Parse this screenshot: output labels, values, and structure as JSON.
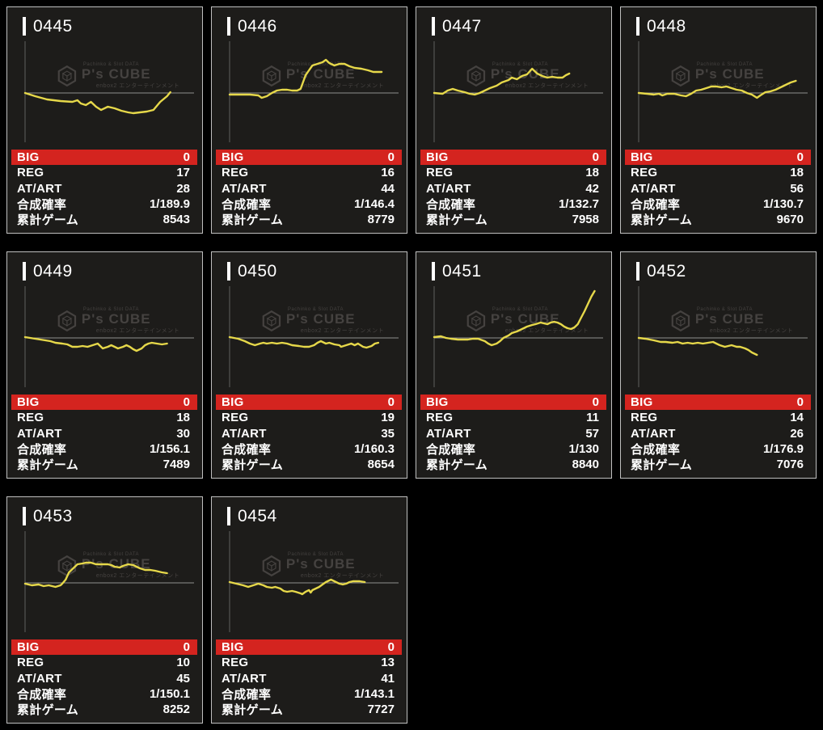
{
  "watermark": {
    "top": "Pachinko & Slot DATA",
    "brand": "P's CUBE",
    "bottom": "enbox2 エンターテインメント"
  },
  "labels": {
    "big": "BIG",
    "reg": "REG",
    "atart": "AT/ART",
    "rate": "合成確率",
    "games": "累計ゲーム"
  },
  "colors": {
    "page_bg": "#000000",
    "card_bg": "#1d1c1a",
    "card_border": "#bfbfbf",
    "big_row_bg": "#d4241f",
    "text": "#ffffff",
    "line": "#e6d84a",
    "axis_v": "#5f5f5f",
    "axis_h": "#8f8f8f",
    "watermark": "#454240",
    "title_bar": "#ffffff"
  },
  "chart_data": {
    "type": "line",
    "note": "slump graphs per machine; points are [x_fraction_of_plot_width, offset_px_above_zero_line]",
    "zero_line": 0
  },
  "machines": [
    {
      "id": "0445",
      "big": "0",
      "reg": "17",
      "atart": "28",
      "rate": "1/189.9",
      "games": "8543",
      "chart": [
        [
          0,
          0
        ],
        [
          0.06,
          -4
        ],
        [
          0.13,
          -8
        ],
        [
          0.21,
          -10
        ],
        [
          0.28,
          -11
        ],
        [
          0.31,
          -9
        ],
        [
          0.33,
          -13
        ],
        [
          0.36,
          -15
        ],
        [
          0.39,
          -11
        ],
        [
          0.42,
          -17
        ],
        [
          0.45,
          -21
        ],
        [
          0.49,
          -17
        ],
        [
          0.53,
          -19
        ],
        [
          0.57,
          -22
        ],
        [
          0.61,
          -24
        ],
        [
          0.64,
          -25
        ],
        [
          0.68,
          -24
        ],
        [
          0.72,
          -23
        ],
        [
          0.76,
          -21
        ],
        [
          0.8,
          -11
        ],
        [
          0.84,
          -4
        ],
        [
          0.86,
          1
        ]
      ]
    },
    {
      "id": "0446",
      "big": "0",
      "reg": "16",
      "atart": "44",
      "rate": "1/146.4",
      "games": "8779",
      "chart": [
        [
          0,
          -2
        ],
        [
          0.06,
          -2
        ],
        [
          0.12,
          -2
        ],
        [
          0.17,
          -3
        ],
        [
          0.19,
          -6
        ],
        [
          0.22,
          -4
        ],
        [
          0.25,
          0
        ],
        [
          0.28,
          3
        ],
        [
          0.31,
          4
        ],
        [
          0.34,
          4
        ],
        [
          0.37,
          3
        ],
        [
          0.4,
          3
        ],
        [
          0.42,
          5
        ],
        [
          0.45,
          22
        ],
        [
          0.49,
          34
        ],
        [
          0.52,
          36
        ],
        [
          0.55,
          38
        ],
        [
          0.57,
          41
        ],
        [
          0.59,
          37
        ],
        [
          0.62,
          34
        ],
        [
          0.65,
          36
        ],
        [
          0.68,
          36
        ],
        [
          0.71,
          33
        ],
        [
          0.74,
          31
        ],
        [
          0.78,
          30
        ],
        [
          0.82,
          28
        ],
        [
          0.85,
          26
        ],
        [
          0.9,
          26
        ]
      ]
    },
    {
      "id": "0447",
      "big": "0",
      "reg": "18",
      "atart": "42",
      "rate": "1/132.7",
      "games": "7958",
      "chart": [
        [
          0,
          0
        ],
        [
          0.05,
          -1
        ],
        [
          0.08,
          3
        ],
        [
          0.11,
          5
        ],
        [
          0.14,
          3
        ],
        [
          0.18,
          1
        ],
        [
          0.21,
          -1
        ],
        [
          0.24,
          -2
        ],
        [
          0.27,
          0
        ],
        [
          0.3,
          3
        ],
        [
          0.33,
          6
        ],
        [
          0.37,
          9
        ],
        [
          0.4,
          13
        ],
        [
          0.44,
          16
        ],
        [
          0.46,
          19
        ],
        [
          0.49,
          17
        ],
        [
          0.52,
          21
        ],
        [
          0.55,
          23
        ],
        [
          0.58,
          30
        ],
        [
          0.61,
          24
        ],
        [
          0.64,
          21
        ],
        [
          0.67,
          19
        ],
        [
          0.7,
          20
        ],
        [
          0.73,
          19
        ],
        [
          0.76,
          19
        ],
        [
          0.78,
          22
        ],
        [
          0.8,
          24
        ]
      ]
    },
    {
      "id": "0448",
      "big": "0",
      "reg": "18",
      "atart": "56",
      "rate": "1/130.7",
      "games": "9670",
      "chart": [
        [
          0,
          0
        ],
        [
          0.05,
          -1
        ],
        [
          0.09,
          -2
        ],
        [
          0.12,
          -1
        ],
        [
          0.14,
          -3
        ],
        [
          0.17,
          -1
        ],
        [
          0.21,
          -1
        ],
        [
          0.25,
          -3
        ],
        [
          0.28,
          -4
        ],
        [
          0.31,
          -1
        ],
        [
          0.34,
          3
        ],
        [
          0.37,
          4
        ],
        [
          0.4,
          6
        ],
        [
          0.43,
          8
        ],
        [
          0.46,
          8
        ],
        [
          0.49,
          7
        ],
        [
          0.52,
          8
        ],
        [
          0.55,
          6
        ],
        [
          0.58,
          4
        ],
        [
          0.61,
          3
        ],
        [
          0.64,
          0
        ],
        [
          0.67,
          -2
        ],
        [
          0.7,
          -6
        ],
        [
          0.72,
          -3
        ],
        [
          0.75,
          1
        ],
        [
          0.78,
          2
        ],
        [
          0.81,
          4
        ],
        [
          0.84,
          7
        ],
        [
          0.87,
          10
        ],
        [
          0.9,
          13
        ],
        [
          0.93,
          15
        ]
      ]
    },
    {
      "id": "0449",
      "big": "0",
      "reg": "18",
      "atart": "30",
      "rate": "1/156.1",
      "games": "7489",
      "chart": [
        [
          0,
          1
        ],
        [
          0.06,
          -1
        ],
        [
          0.12,
          -3
        ],
        [
          0.15,
          -4
        ],
        [
          0.18,
          -6
        ],
        [
          0.22,
          -7
        ],
        [
          0.25,
          -8
        ],
        [
          0.28,
          -11
        ],
        [
          0.31,
          -11
        ],
        [
          0.34,
          -10
        ],
        [
          0.37,
          -11
        ],
        [
          0.4,
          -9
        ],
        [
          0.43,
          -7
        ],
        [
          0.45,
          -11
        ],
        [
          0.46,
          -13
        ],
        [
          0.49,
          -11
        ],
        [
          0.51,
          -9
        ],
        [
          0.53,
          -11
        ],
        [
          0.55,
          -13
        ],
        [
          0.58,
          -11
        ],
        [
          0.6,
          -9
        ],
        [
          0.62,
          -11
        ],
        [
          0.64,
          -14
        ],
        [
          0.66,
          -16
        ],
        [
          0.69,
          -13
        ],
        [
          0.71,
          -9
        ],
        [
          0.73,
          -7
        ],
        [
          0.75,
          -6
        ],
        [
          0.78,
          -7
        ],
        [
          0.81,
          -8
        ],
        [
          0.84,
          -7
        ]
      ]
    },
    {
      "id": "0450",
      "big": "0",
      "reg": "19",
      "atart": "35",
      "rate": "1/160.3",
      "games": "8654",
      "chart": [
        [
          0,
          1
        ],
        [
          0.05,
          -1
        ],
        [
          0.09,
          -4
        ],
        [
          0.12,
          -7
        ],
        [
          0.15,
          -9
        ],
        [
          0.18,
          -7
        ],
        [
          0.2,
          -6
        ],
        [
          0.22,
          -7
        ],
        [
          0.25,
          -6
        ],
        [
          0.28,
          -7
        ],
        [
          0.31,
          -6
        ],
        [
          0.34,
          -7
        ],
        [
          0.37,
          -9
        ],
        [
          0.41,
          -10
        ],
        [
          0.44,
          -11
        ],
        [
          0.47,
          -11
        ],
        [
          0.5,
          -9
        ],
        [
          0.52,
          -6
        ],
        [
          0.54,
          -4
        ],
        [
          0.57,
          -7
        ],
        [
          0.59,
          -6
        ],
        [
          0.62,
          -8
        ],
        [
          0.65,
          -9
        ],
        [
          0.66,
          -11
        ],
        [
          0.69,
          -9
        ],
        [
          0.72,
          -7
        ],
        [
          0.74,
          -9
        ],
        [
          0.76,
          -7
        ],
        [
          0.79,
          -11
        ],
        [
          0.81,
          -12
        ],
        [
          0.84,
          -10
        ],
        [
          0.86,
          -7
        ],
        [
          0.88,
          -6
        ]
      ]
    },
    {
      "id": "0451",
      "big": "0",
      "reg": "11",
      "atart": "57",
      "rate": "1/130",
      "games": "8840",
      "chart": [
        [
          0,
          1
        ],
        [
          0.04,
          2
        ],
        [
          0.07,
          0
        ],
        [
          0.1,
          -1
        ],
        [
          0.14,
          -2
        ],
        [
          0.17,
          -2
        ],
        [
          0.2,
          -2
        ],
        [
          0.23,
          -1
        ],
        [
          0.26,
          -1
        ],
        [
          0.3,
          -4
        ],
        [
          0.32,
          -7
        ],
        [
          0.34,
          -9
        ],
        [
          0.37,
          -7
        ],
        [
          0.39,
          -4
        ],
        [
          0.41,
          0
        ],
        [
          0.44,
          3
        ],
        [
          0.46,
          6
        ],
        [
          0.49,
          8
        ],
        [
          0.51,
          10
        ],
        [
          0.53,
          12
        ],
        [
          0.55,
          14
        ],
        [
          0.58,
          16
        ],
        [
          0.6,
          17
        ],
        [
          0.63,
          19
        ],
        [
          0.65,
          18
        ],
        [
          0.67,
          17
        ],
        [
          0.69,
          19
        ],
        [
          0.71,
          20
        ],
        [
          0.73,
          19
        ],
        [
          0.75,
          17
        ],
        [
          0.77,
          14
        ],
        [
          0.79,
          12
        ],
        [
          0.81,
          11
        ],
        [
          0.83,
          13
        ],
        [
          0.85,
          17
        ],
        [
          0.87,
          25
        ],
        [
          0.89,
          33
        ],
        [
          0.91,
          42
        ],
        [
          0.93,
          51
        ],
        [
          0.95,
          58
        ]
      ]
    },
    {
      "id": "0452",
      "big": "0",
      "reg": "14",
      "atart": "26",
      "rate": "1/176.9",
      "games": "7076",
      "chart": [
        [
          0,
          0
        ],
        [
          0.04,
          -1
        ],
        [
          0.09,
          -3
        ],
        [
          0.13,
          -5
        ],
        [
          0.16,
          -5
        ],
        [
          0.2,
          -6
        ],
        [
          0.23,
          -5
        ],
        [
          0.26,
          -7
        ],
        [
          0.29,
          -6
        ],
        [
          0.32,
          -7
        ],
        [
          0.35,
          -6
        ],
        [
          0.38,
          -7
        ],
        [
          0.41,
          -6
        ],
        [
          0.44,
          -5
        ],
        [
          0.46,
          -7
        ],
        [
          0.48,
          -9
        ],
        [
          0.51,
          -11
        ],
        [
          0.53,
          -10
        ],
        [
          0.55,
          -9
        ],
        [
          0.58,
          -11
        ],
        [
          0.6,
          -11
        ],
        [
          0.63,
          -13
        ],
        [
          0.65,
          -15
        ],
        [
          0.67,
          -18
        ],
        [
          0.69,
          -20
        ],
        [
          0.7,
          -21
        ]
      ]
    },
    {
      "id": "0453",
      "big": "0",
      "reg": "10",
      "atart": "45",
      "rate": "1/150.1",
      "games": "8252",
      "chart": [
        [
          0,
          -1
        ],
        [
          0.04,
          -3
        ],
        [
          0.08,
          -2
        ],
        [
          0.11,
          -4
        ],
        [
          0.14,
          -3
        ],
        [
          0.18,
          -5
        ],
        [
          0.21,
          -3
        ],
        [
          0.22,
          -1
        ],
        [
          0.24,
          4
        ],
        [
          0.26,
          13
        ],
        [
          0.29,
          19
        ],
        [
          0.31,
          23
        ],
        [
          0.34,
          24
        ],
        [
          0.36,
          25
        ],
        [
          0.39,
          25
        ],
        [
          0.42,
          23
        ],
        [
          0.45,
          23
        ],
        [
          0.49,
          23
        ],
        [
          0.51,
          22
        ],
        [
          0.53,
          20
        ],
        [
          0.56,
          19
        ],
        [
          0.58,
          21
        ],
        [
          0.61,
          23
        ],
        [
          0.64,
          22
        ],
        [
          0.66,
          20
        ],
        [
          0.68,
          18
        ],
        [
          0.71,
          16
        ],
        [
          0.74,
          16
        ],
        [
          0.77,
          15
        ],
        [
          0.79,
          14
        ],
        [
          0.81,
          13
        ],
        [
          0.84,
          12
        ]
      ]
    },
    {
      "id": "0454",
      "big": "0",
      "reg": "13",
      "atart": "41",
      "rate": "1/143.1",
      "games": "7727",
      "chart": [
        [
          0,
          1
        ],
        [
          0.04,
          -1
        ],
        [
          0.08,
          -3
        ],
        [
          0.11,
          -5
        ],
        [
          0.14,
          -3
        ],
        [
          0.17,
          -1
        ],
        [
          0.2,
          -3
        ],
        [
          0.22,
          -5
        ],
        [
          0.25,
          -6
        ],
        [
          0.27,
          -5
        ],
        [
          0.3,
          -7
        ],
        [
          0.32,
          -10
        ],
        [
          0.34,
          -11
        ],
        [
          0.37,
          -10
        ],
        [
          0.39,
          -11
        ],
        [
          0.42,
          -13
        ],
        [
          0.43,
          -14
        ],
        [
          0.45,
          -11
        ],
        [
          0.47,
          -9
        ],
        [
          0.48,
          -12
        ],
        [
          0.49,
          -9
        ],
        [
          0.51,
          -7
        ],
        [
          0.53,
          -5
        ],
        [
          0.55,
          -2
        ],
        [
          0.57,
          1
        ],
        [
          0.59,
          3
        ],
        [
          0.6,
          4
        ],
        [
          0.62,
          2
        ],
        [
          0.65,
          -1
        ],
        [
          0.67,
          -2
        ],
        [
          0.69,
          -1
        ],
        [
          0.71,
          1
        ],
        [
          0.73,
          2
        ],
        [
          0.75,
          2
        ],
        [
          0.77,
          2
        ],
        [
          0.8,
          1
        ]
      ]
    }
  ]
}
